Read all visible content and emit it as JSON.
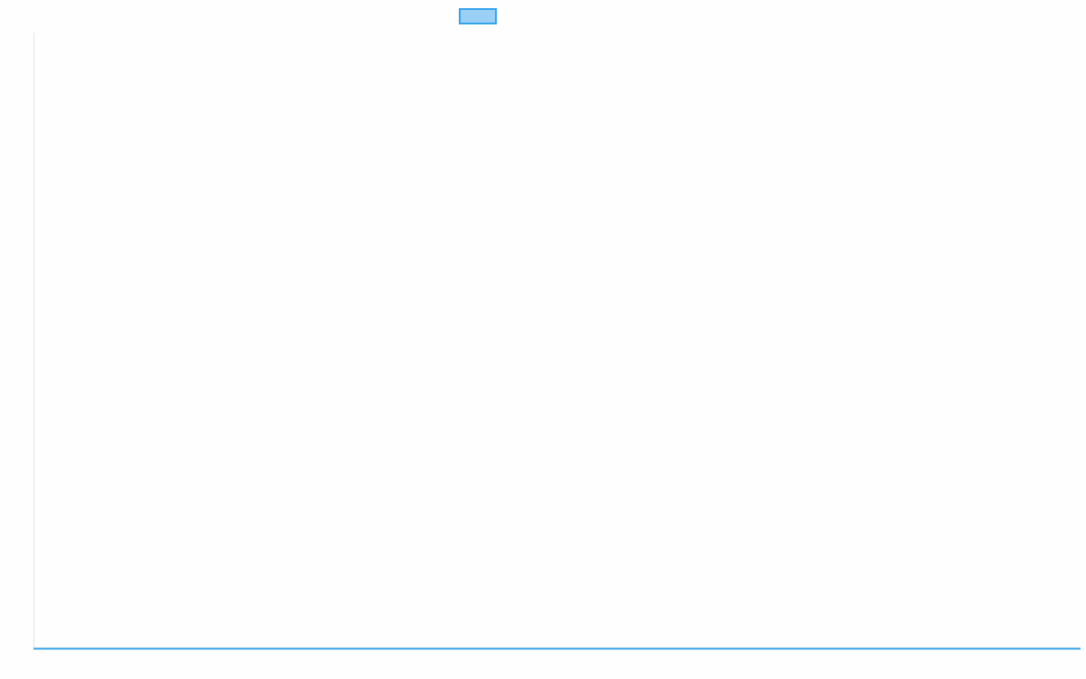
{
  "chart_data": {
    "type": "line",
    "title": "",
    "xlabel": "",
    "ylabel": "",
    "grid": false,
    "legend": {
      "placement": "top",
      "entries": [
        ""
      ]
    },
    "series": [
      {
        "name": "",
        "color": "#36a2eb",
        "fill": "#9ad0f5",
        "values": []
      }
    ]
  }
}
